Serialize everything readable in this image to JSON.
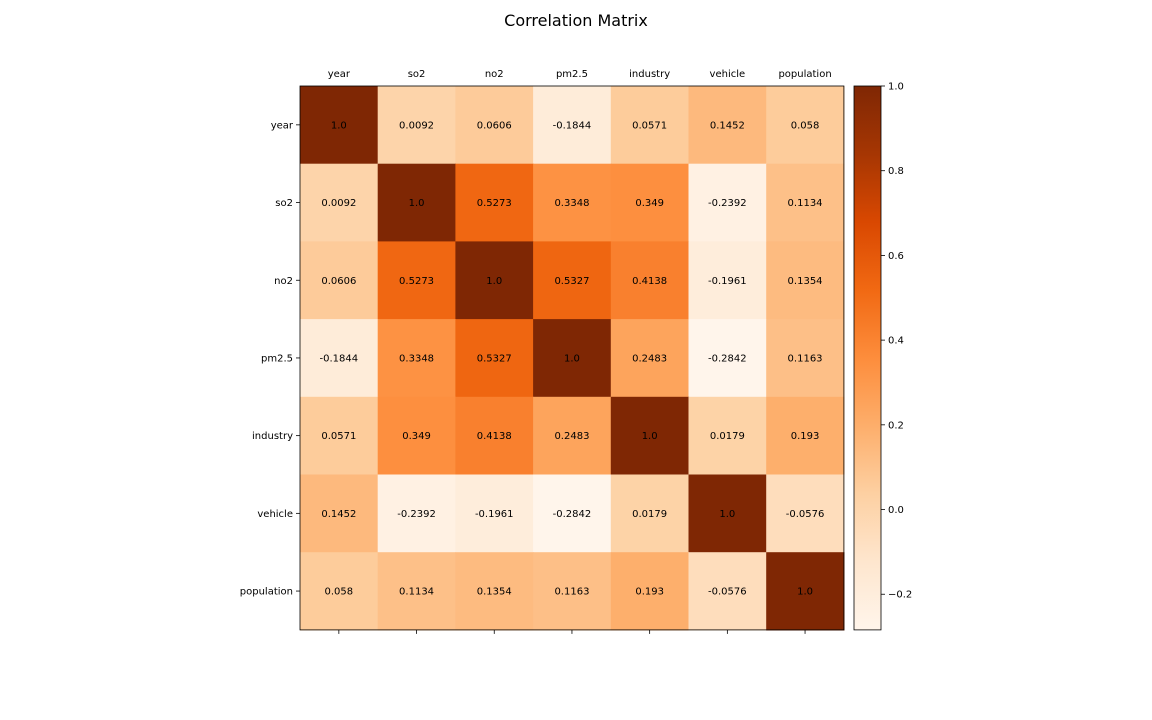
{
  "chart_data": {
    "type": "heatmap",
    "title": "Correlation Matrix",
    "x_labels": [
      "year",
      "so2",
      "no2",
      "pm2.5",
      "industry",
      "vehicle",
      "population"
    ],
    "y_labels": [
      "year",
      "so2",
      "no2",
      "pm2.5",
      "industry",
      "vehicle",
      "population"
    ],
    "values": [
      [
        1.0,
        0.0092,
        0.0606,
        -0.1844,
        0.0571,
        0.1452,
        0.058
      ],
      [
        0.0092,
        1.0,
        0.5273,
        0.3348,
        0.349,
        -0.2392,
        0.1134
      ],
      [
        0.0606,
        0.5273,
        1.0,
        0.5327,
        0.4138,
        -0.1961,
        0.1354
      ],
      [
        -0.1844,
        0.3348,
        0.5327,
        1.0,
        0.2483,
        -0.2842,
        0.1163
      ],
      [
        0.0571,
        0.349,
        0.4138,
        0.2483,
        1.0,
        0.0179,
        0.193
      ],
      [
        0.1452,
        -0.2392,
        -0.1961,
        -0.2842,
        0.0179,
        1.0,
        -0.0576
      ],
      [
        0.058,
        0.1134,
        0.1354,
        0.1163,
        0.193,
        -0.0576,
        1.0
      ]
    ],
    "cell_labels": [
      [
        "1.0",
        "0.0092",
        "0.0606",
        "-0.1844",
        "0.0571",
        "0.1452",
        "0.058"
      ],
      [
        "0.0092",
        "1.0",
        "0.5273",
        "0.3348",
        "0.349",
        "-0.2392",
        "0.1134"
      ],
      [
        "0.0606",
        "0.5273",
        "1.0",
        "0.5327",
        "0.4138",
        "-0.1961",
        "0.1354"
      ],
      [
        "-0.1844",
        "0.3348",
        "0.5327",
        "1.0",
        "0.2483",
        "-0.2842",
        "0.1163"
      ],
      [
        "0.0571",
        "0.349",
        "0.4138",
        "0.2483",
        "1.0",
        "0.0179",
        "0.193"
      ],
      [
        "0.1452",
        "-0.2392",
        "-0.1961",
        "-0.2842",
        "0.0179",
        "1.0",
        "-0.0576"
      ],
      [
        "0.058",
        "0.1134",
        "0.1354",
        "0.1163",
        "0.193",
        "-0.0576",
        "1.0"
      ]
    ],
    "colormap": "Oranges",
    "colorbar": {
      "range": [
        -0.2842,
        1.0
      ],
      "ticks": [
        -0.2,
        0.0,
        0.2,
        0.4,
        0.6,
        0.8,
        1.0
      ],
      "tick_labels": [
        "−0.2",
        "0.0",
        "0.2",
        "0.4",
        "0.6",
        "0.8",
        "1.0"
      ]
    },
    "x_tick_position": "top",
    "grid": false
  }
}
